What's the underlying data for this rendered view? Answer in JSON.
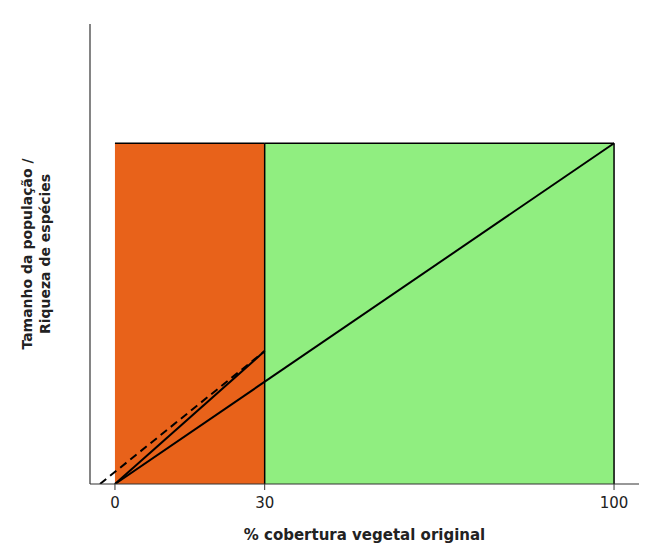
{
  "chart_data": {
    "type": "line",
    "xlabel": "% cobertura vegetal original",
    "ylabel": "Tamanho da população /\nRiqueza de espécies",
    "xlim": [
      -5,
      105
    ],
    "ylim": [
      0,
      1.35
    ],
    "xticks": [
      0,
      30,
      100
    ],
    "tick_labels": "x",
    "regions": [
      {
        "x": [
          0,
          30
        ],
        "y": [
          0,
          1.0
        ],
        "color": "#E8621A"
      },
      {
        "x": [
          30,
          100
        ],
        "y": [
          0,
          1.0
        ],
        "color": "#90EE80"
      }
    ],
    "series": [
      {
        "x": [
          0,
          100
        ],
        "values": [
          0,
          1.0
        ],
        "color": "black",
        "line_style": "solid"
      },
      {
        "x": [
          -3,
          30
        ],
        "values": [
          0,
          0.39
        ],
        "color": "black",
        "line_style": "dashed"
      },
      {
        "x": [
          0,
          30
        ],
        "values": [
          0,
          0.39
        ],
        "color": "black",
        "line_style": "solid"
      }
    ]
  }
}
